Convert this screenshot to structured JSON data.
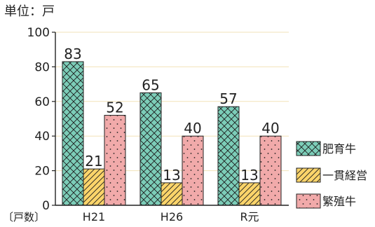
{
  "chart_data": {
    "type": "bar",
    "unit_label": "単位：戸",
    "y_unit": "〔戸数〕",
    "categories": [
      "H21",
      "H26",
      "R元"
    ],
    "series": [
      {
        "name": "肥育牛",
        "values": [
          83,
          65,
          57
        ],
        "color": "#7ccdb8",
        "pattern": "crosshatch"
      },
      {
        "name": "一貫経営",
        "values": [
          21,
          13,
          13
        ],
        "color": "#fbd46a",
        "pattern": "diagonal"
      },
      {
        "name": "繁殖牛",
        "values": [
          52,
          40,
          40
        ],
        "color": "#f1aaaa",
        "pattern": "dots"
      }
    ],
    "ylim": [
      0,
      100
    ],
    "yticks": [
      0,
      20,
      40,
      60,
      80,
      100
    ],
    "grid": true,
    "grid_color": "#f2e2b8",
    "legend_position": "right"
  }
}
